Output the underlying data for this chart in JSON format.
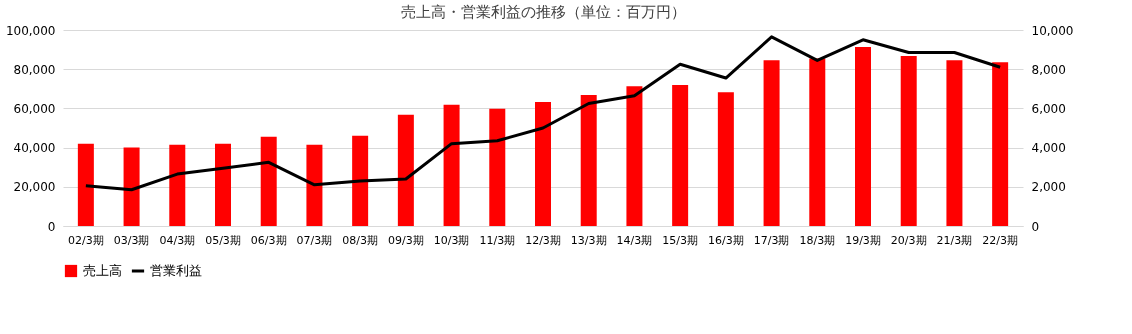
{
  "chart_data": {
    "type": "bar",
    "title": "売上高・営業利益の推移（単位：百万円）",
    "categories": [
      "02/3期",
      "03/3期",
      "04/3期",
      "05/3期",
      "06/3期",
      "07/3期",
      "08/3期",
      "09/3期",
      "10/3期",
      "11/3期",
      "12/3期",
      "13/3期",
      "14/3期",
      "15/3期",
      "16/3期",
      "17/3期",
      "18/3期",
      "19/3期",
      "20/3期",
      "21/3期",
      "22/3期"
    ],
    "series": [
      {
        "name": "売上高",
        "color": "#ff0000",
        "values": [
          42000,
          40000,
          41500,
          42000,
          45500,
          41500,
          46000,
          56800,
          61800,
          59800,
          63300,
          66800,
          71300,
          72000,
          68300,
          84600,
          85500,
          91300,
          86700,
          84600,
          83600
        ]
      },
      {
        "name": "営業利益",
        "type": "line",
        "axis": "y2",
        "color": "#000000",
        "values": [
          2050,
          1850,
          2650,
          2950,
          3250,
          2100,
          2300,
          2400,
          4200,
          4350,
          5000,
          6250,
          6650,
          8250,
          7550,
          9650,
          8450,
          9500,
          8850,
          8850,
          8100
        ]
      }
    ],
    "ylim": [
      0,
      100000
    ],
    "yticks": [
      0,
      {
        "value": 20000,
        "label": "20,000"
      },
      {
        "value": 40000,
        "label": "40,000"
      },
      {
        "value": 60000,
        "label": "60,000"
      },
      {
        "value": 80000,
        "label": "80,000"
      },
      {
        "value": 100000,
        "label": "100,000"
      }
    ],
    "y2lim": [
      0,
      10000
    ],
    "y2ticks": [
      0,
      {
        "value": 2000,
        "label": "2,000"
      },
      {
        "value": 4000,
        "label": "4,000"
      },
      {
        "value": 6000,
        "label": "6,000"
      },
      {
        "value": 8000,
        "label": "8,000"
      },
      {
        "value": 10000,
        "label": "10,000"
      }
    ],
    "grid": "y",
    "legend": "bottom",
    "marker": "none",
    "line_style": "solid"
  }
}
